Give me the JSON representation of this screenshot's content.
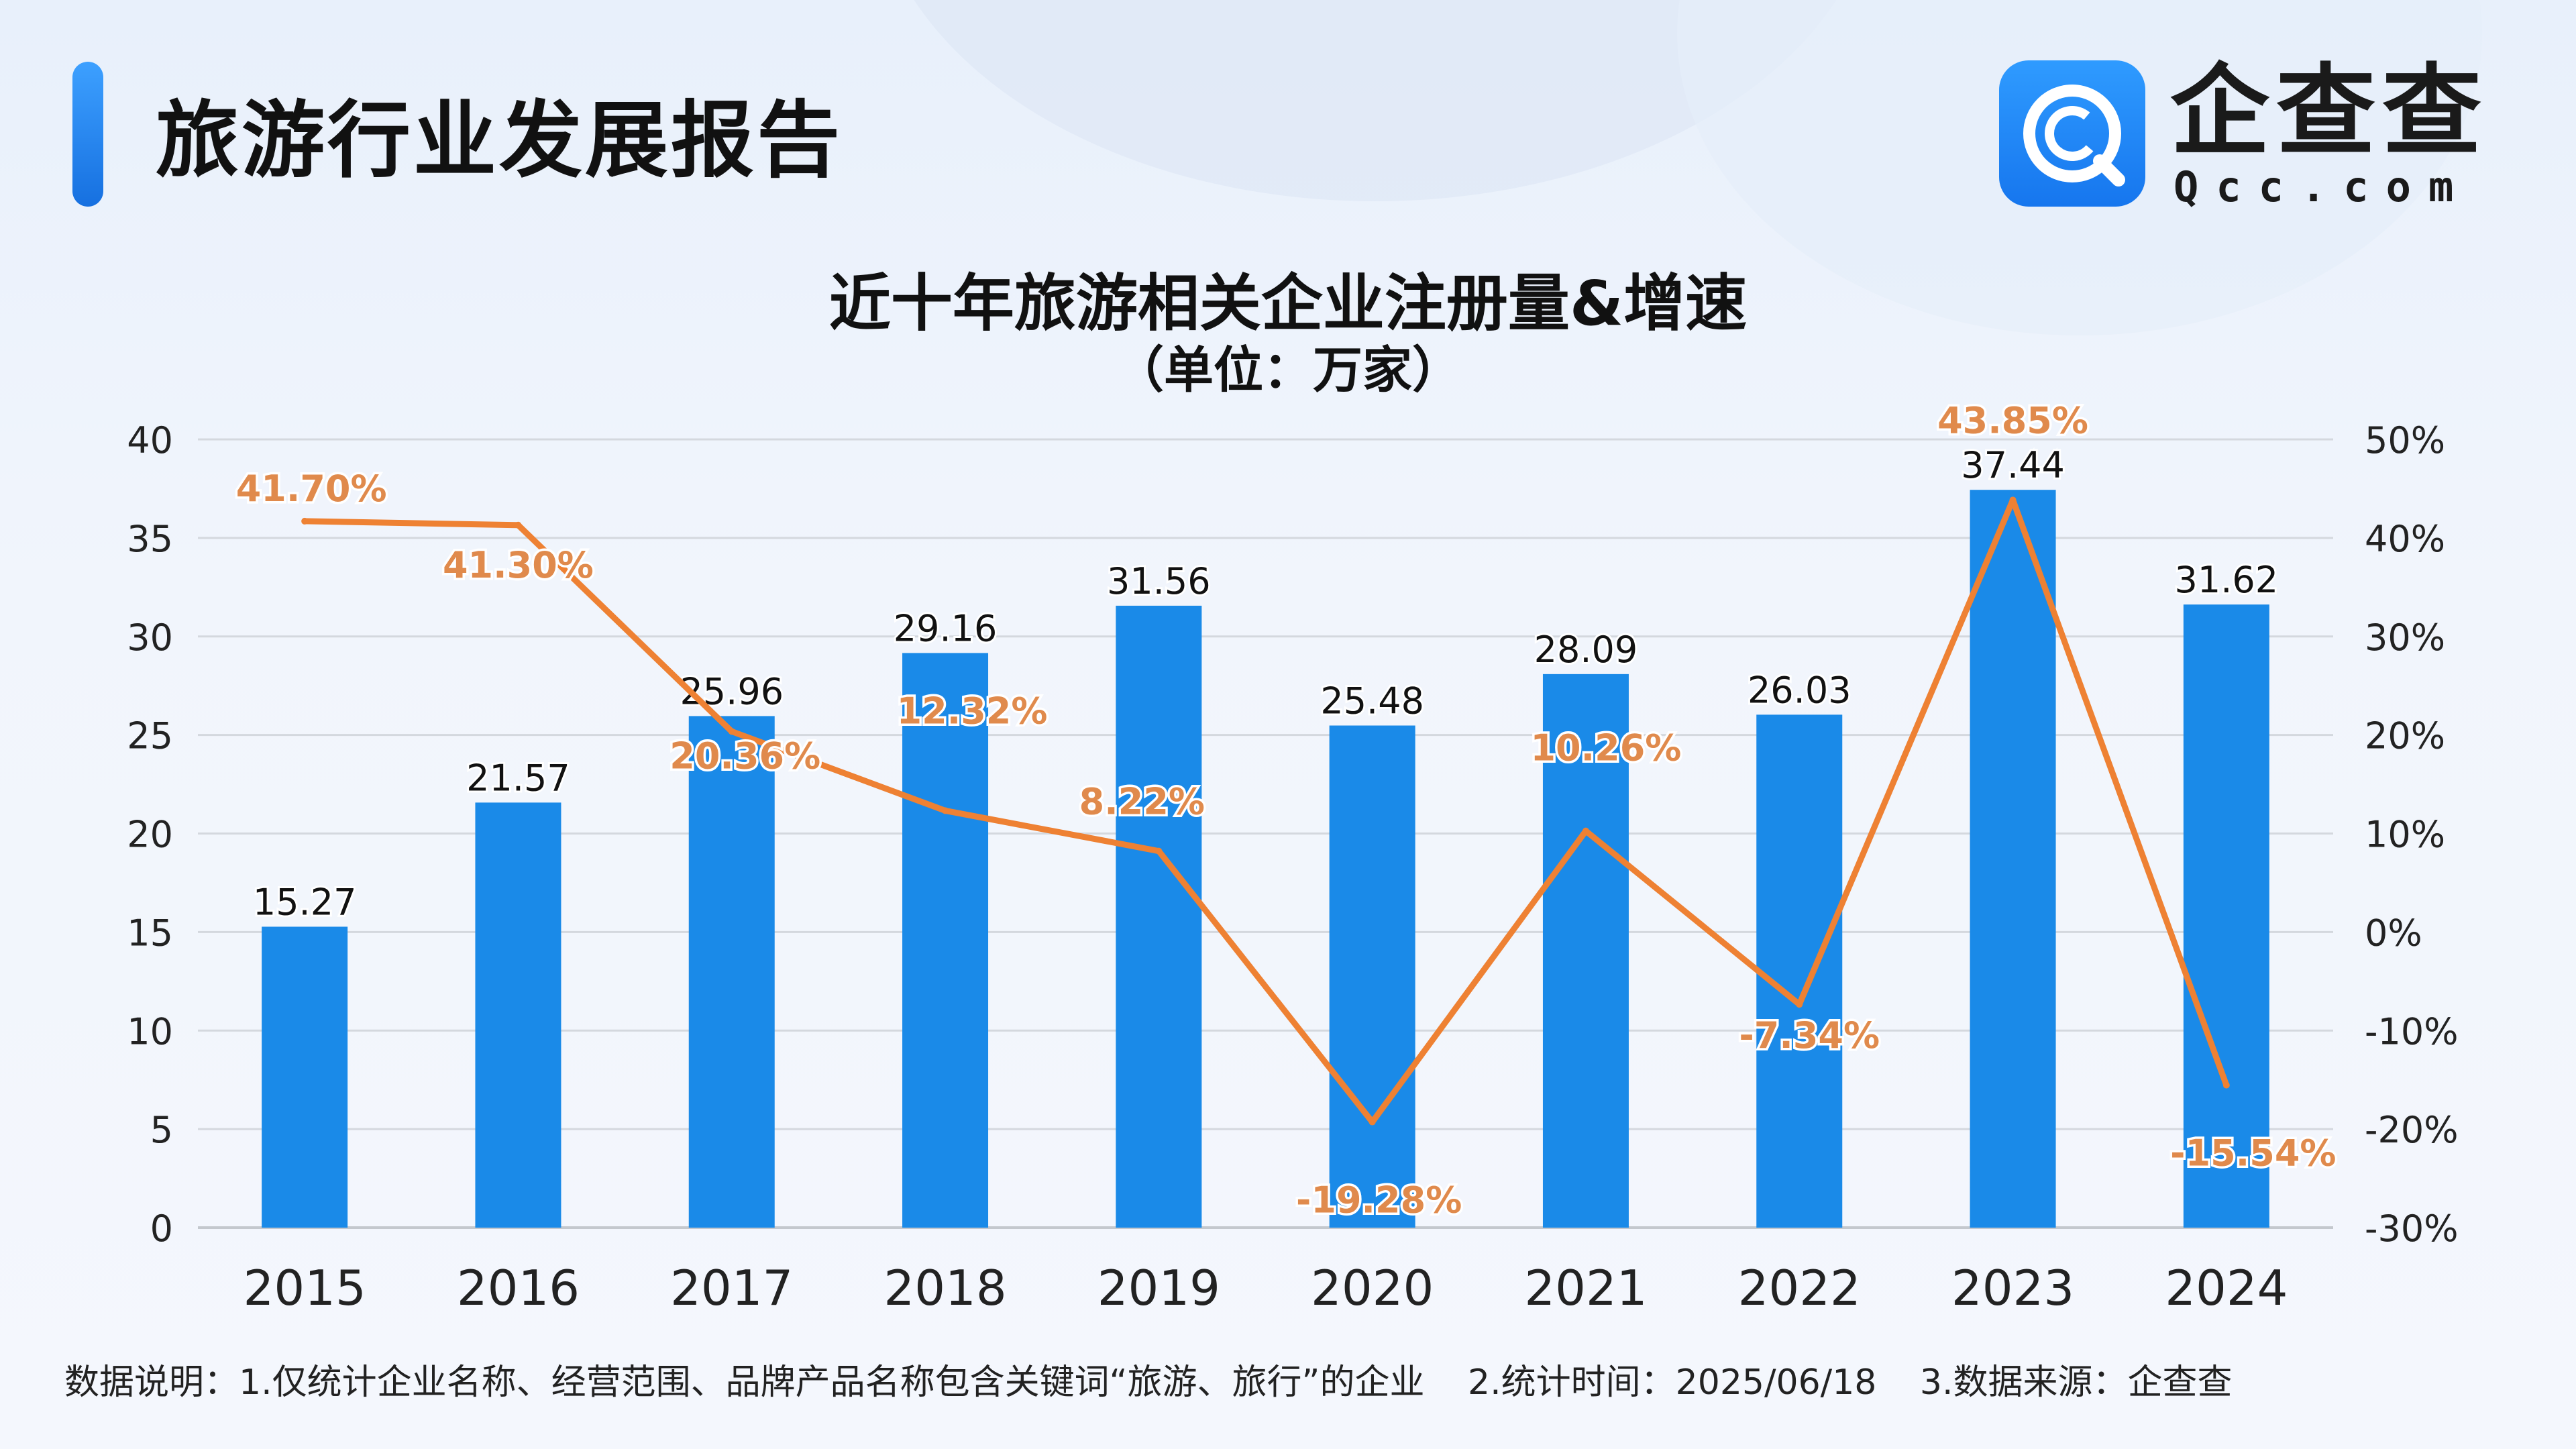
{
  "header": {
    "report_title": "旅游行业发展报告",
    "logo_brand": "企查查",
    "logo_domain": "Qcc.com",
    "logo_icon": "qcc-logo-icon"
  },
  "colors": {
    "bar": "#1a8ae8",
    "line": "#ee8133",
    "accent": "#1670e0"
  },
  "chart_data": {
    "type": "bar",
    "title": "近十年旅游相关企业注册量&增速",
    "subtitle": "（单位：万家）",
    "categories": [
      "2015",
      "2016",
      "2017",
      "2018",
      "2019",
      "2020",
      "2021",
      "2022",
      "2023",
      "2024"
    ],
    "series": [
      {
        "type": "bar",
        "values": [
          15.27,
          21.57,
          25.96,
          29.16,
          31.56,
          25.48,
          28.09,
          26.03,
          37.44,
          31.62
        ],
        "labels": [
          "15.27",
          "21.57",
          "25.96",
          "29.16",
          "31.56",
          "25.48",
          "28.09",
          "26.03",
          "37.44",
          "31.62"
        ]
      },
      {
        "type": "line",
        "axis": "right",
        "values": [
          41.7,
          41.3,
          20.36,
          12.32,
          8.22,
          -19.28,
          10.26,
          -7.34,
          43.85,
          -15.54
        ],
        "labels": [
          "41.70%",
          "41.30%",
          "20.36%",
          "12.32%",
          "8.22%",
          "-19.28%",
          "10.26%",
          "-7.34%",
          "43.85%",
          "-15.54%"
        ]
      }
    ],
    "y_left": {
      "min": 0,
      "max": 40,
      "ticks": [
        "0",
        "5",
        "10",
        "15",
        "20",
        "25",
        "30",
        "35",
        "40"
      ]
    },
    "y_right": {
      "min": -30,
      "max": 50,
      "ticks": [
        "-30%",
        "-20%",
        "-10%",
        "0%",
        "10%",
        "20%",
        "30%",
        "40%",
        "50%"
      ]
    },
    "grid": true
  },
  "footnote": {
    "note1": "数据说明：1.仅统计企业名称、经营范围、品牌产品名称包含关键词“旅游、旅行”的企业",
    "note2": "2.统计时间：2025/06/18",
    "note3": "3.数据来源：企查查"
  }
}
